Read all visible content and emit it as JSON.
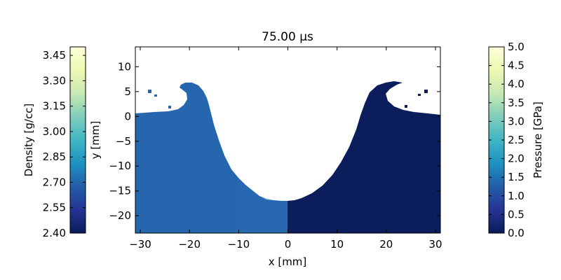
{
  "chart_data": {
    "type": "heatmap",
    "title": "75.00 μs",
    "xlabel": "x [mm]",
    "ylabel": "y [mm]",
    "xlim": [
      -31,
      31
    ],
    "ylim": [
      -23.5,
      14
    ],
    "xticks": [
      -30,
      -20,
      -10,
      0,
      10,
      20,
      30
    ],
    "yticks": [
      -20,
      -15,
      -10,
      -5,
      0,
      5,
      10
    ],
    "left_half": {
      "field": "Density",
      "side": "x < 0",
      "colorbar": {
        "label": "Density [g/cc]",
        "range": [
          2.4,
          3.5
        ],
        "ticks": [
          "2.40",
          "2.55",
          "2.70",
          "2.85",
          "3.00",
          "3.15",
          "3.30",
          "3.45"
        ],
        "position": "left"
      },
      "approx_value": 2.7
    },
    "right_half": {
      "field": "Pressure",
      "side": "x > 0",
      "colorbar": {
        "label": "Pressure [GPa]",
        "range": [
          0,
          5
        ],
        "ticks": [
          "0.0",
          "0.5",
          "1.0",
          "1.5",
          "2.0",
          "2.5",
          "3.0",
          "3.5",
          "4.0",
          "4.5",
          "5.0"
        ],
        "position": "right"
      },
      "approx_value": 0.05
    },
    "colormap": "YlGnBu_r",
    "colors": {
      "density_fill": "#2566ae",
      "pressure_fill": "#0b1d5b",
      "cmap_stops": [
        "#081d58",
        "#253494",
        "#225ea8",
        "#1d91c0",
        "#41b6c4",
        "#7fcdbb",
        "#c7e9b4",
        "#edf8b1",
        "#ffffd9"
      ]
    }
  }
}
